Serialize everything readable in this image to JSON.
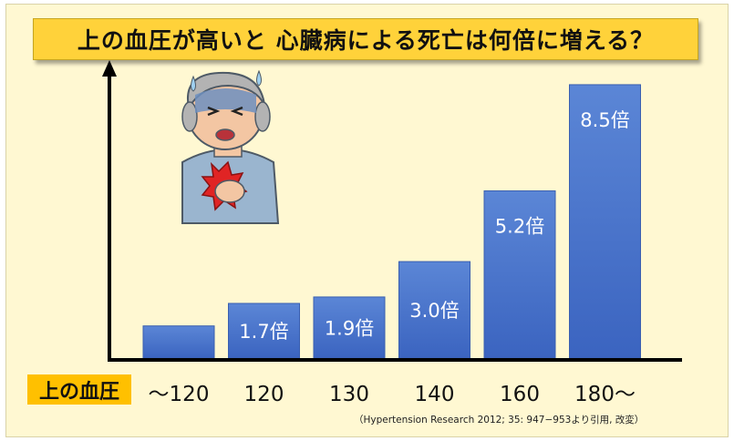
{
  "title": "上の血圧が高いと 心臓病による死亡は何倍に増える？",
  "source": "（Hypertension Research 2012; 35: 947−953より引用, 改変）",
  "colors": {
    "background": "#fff8d2",
    "title_box": "#ffd23a",
    "xlabel_box": "#ffc000",
    "bar_top": "#5b86d6",
    "bar_bottom": "#3b64c0",
    "axis": "#000000"
  },
  "illustration": "elderly-man-chest-pain-icon",
  "chart_data": {
    "type": "bar",
    "title": "上の血圧が高いと 心臓病による死亡は何倍に増える？",
    "xlabel": "上の血圧",
    "ylabel": "",
    "categories": [
      "〜120",
      "120",
      "130",
      "140",
      "160",
      "180〜"
    ],
    "values": [
      1.0,
      1.7,
      1.9,
      3.0,
      5.2,
      8.5
    ],
    "data_labels": [
      "",
      "1.7倍",
      "1.9倍",
      "3.0倍",
      "5.2倍",
      "8.5倍"
    ],
    "ylim": [
      0,
      10
    ],
    "grid": false,
    "legend": "none"
  }
}
